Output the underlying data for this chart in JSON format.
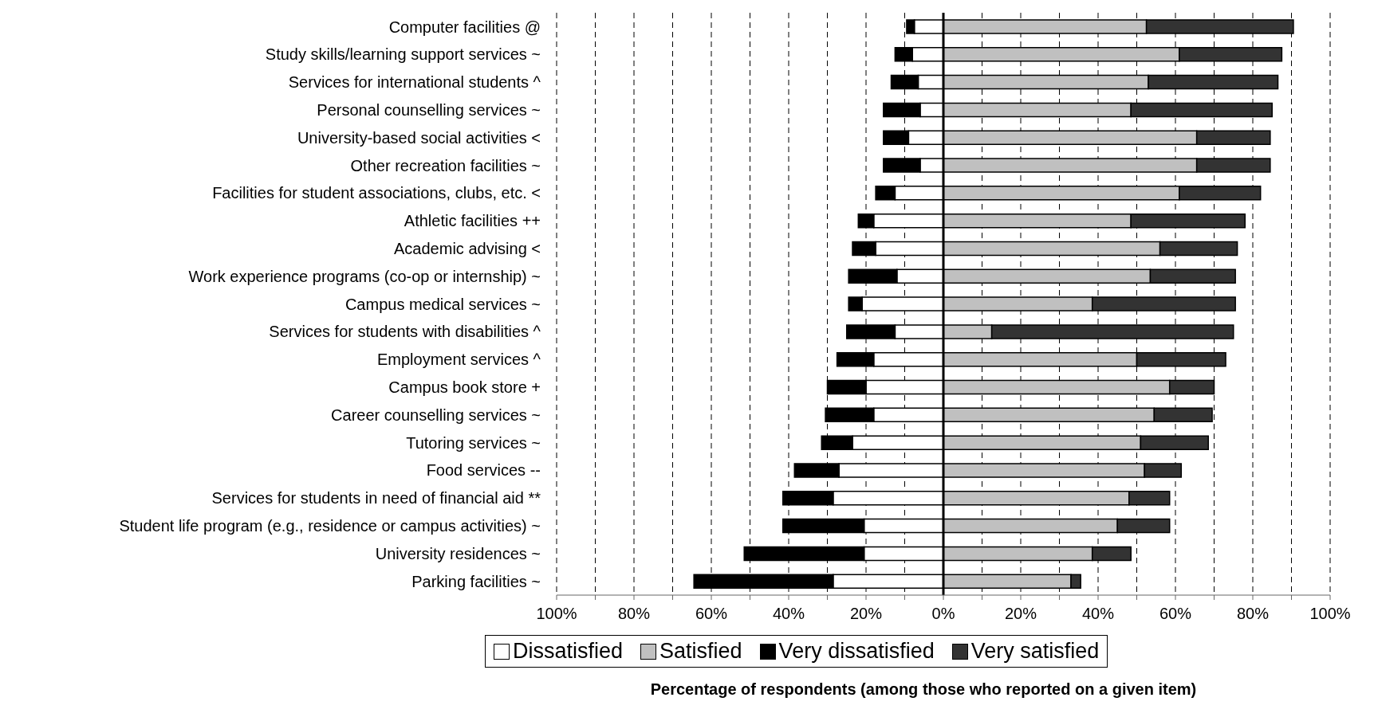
{
  "chart_data": {
    "type": "bar",
    "orientation": "horizontal",
    "stacked": true,
    "xlabel": "Percentage of respondents (among those who reported on a given item)",
    "categories": [
      "Computer facilities @",
      "Study skills/learning support services ~",
      "Services for international students ^",
      "Personal counselling services ~",
      "University-based social activities <",
      "Other recreation facilities ~",
      "Facilities for student associations, clubs, etc. <",
      "Athletic facilities ++",
      "Academic advising <",
      "Work experience programs (co-op or internship) ~",
      "Campus medical services ~",
      "Services for students with disabilities ^",
      "Employment services ^",
      "Campus book store +",
      "Career counselling services ~",
      "Tutoring services ~",
      "Food services --",
      "Services for students in need of financial aid **",
      "Student life program (e.g., residence or campus activities) ~",
      "University residences ~",
      "Parking facilities ~"
    ],
    "series": [
      {
        "name": "Dissatisfied",
        "color": "#ffffff",
        "values": [
          -7.5,
          -8,
          -6.5,
          -6,
          -9,
          -6,
          -12.5,
          -18,
          -17.5,
          -12,
          -21,
          -12.5,
          -18,
          -20,
          -18,
          -23.5,
          -27,
          -28.5,
          -20.5,
          -20.5,
          -28.5
        ]
      },
      {
        "name": "Very dissatisfied",
        "color": "#000000",
        "values": [
          -2,
          -4.5,
          -7,
          -9.5,
          -6.5,
          -9.5,
          -5,
          -4,
          -6,
          -12.5,
          -3.5,
          -12.5,
          -9.5,
          -10,
          -12.5,
          -8,
          -11.5,
          -13,
          -21,
          -31,
          -36
        ]
      },
      {
        "name": "Satisfied",
        "color": "#c0c0c0",
        "values": [
          52.5,
          61,
          53,
          48.5,
          65.5,
          65.5,
          61,
          48.5,
          56,
          53.5,
          38.5,
          12.5,
          50,
          58.5,
          54.5,
          51,
          52,
          48,
          45,
          38.5,
          33
        ]
      },
      {
        "name": "Very satisfied",
        "color": "#333333",
        "values": [
          38,
          26.5,
          33.5,
          36.5,
          19,
          19,
          21,
          29.5,
          20,
          22,
          37,
          62.5,
          23,
          11.5,
          15,
          17.5,
          9.5,
          10.5,
          13.5,
          10,
          2.5
        ]
      }
    ],
    "xlim": [
      -100,
      100
    ],
    "xticks": [
      {
        "value": -100,
        "label": "100%"
      },
      {
        "value": -90,
        "label": null
      },
      {
        "value": -80,
        "label": "80%"
      },
      {
        "value": -70,
        "label": null
      },
      {
        "value": -60,
        "label": "60%"
      },
      {
        "value": -50,
        "label": null
      },
      {
        "value": -40,
        "label": "40%"
      },
      {
        "value": -30,
        "label": null
      },
      {
        "value": -20,
        "label": "20%"
      },
      {
        "value": -10,
        "label": null
      },
      {
        "value": 0,
        "label": "0%"
      },
      {
        "value": 10,
        "label": null
      },
      {
        "value": 20,
        "label": "20%"
      },
      {
        "value": 30,
        "label": null
      },
      {
        "value": 40,
        "label": "40%"
      },
      {
        "value": 50,
        "label": null
      },
      {
        "value": 60,
        "label": "60%"
      },
      {
        "value": 70,
        "label": null
      },
      {
        "value": 80,
        "label": "80%"
      },
      {
        "value": 90,
        "label": null
      },
      {
        "value": 100,
        "label": "100%"
      }
    ],
    "grid": "x",
    "ref_lines": [
      {
        "axis": "x",
        "value": 0,
        "color": "#000000"
      }
    ],
    "legend": "bottom"
  }
}
